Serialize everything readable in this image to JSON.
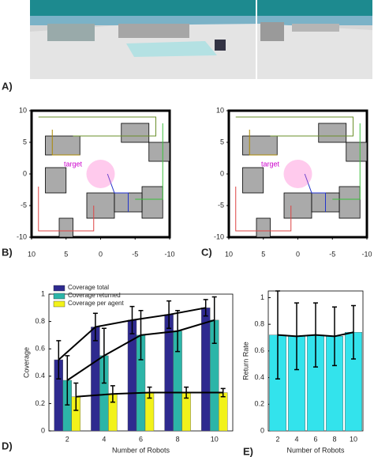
{
  "panels": {
    "labels": [
      "A)",
      "B)",
      "C)",
      "D)",
      "E)"
    ]
  },
  "chart_data": [
    {
      "type": "map",
      "xlim": [
        10,
        -10
      ],
      "ylim": [
        -10,
        10
      ],
      "xticks": [
        10,
        5,
        0,
        -5,
        -10
      ],
      "yticks": [
        10,
        5,
        0,
        -5,
        -10
      ],
      "annotation": "target"
    },
    {
      "type": "map",
      "xlim": [
        10,
        -10
      ],
      "ylim": [
        -10,
        10
      ],
      "xticks": [
        10,
        5,
        0,
        -5,
        -10
      ],
      "yticks": [
        10,
        5,
        0,
        -5,
        -10
      ],
      "annotation": "target"
    },
    {
      "type": "bar",
      "x_label": "Number of Robots",
      "y_label": "Coverage",
      "categories": [
        "2",
        "4",
        "6",
        "8",
        "10"
      ],
      "series": [
        {
          "name": "Coverage total",
          "color": "#2e2a8f",
          "values": [
            0.52,
            0.76,
            0.81,
            0.85,
            0.9
          ],
          "errors": [
            0.14,
            0.1,
            0.1,
            0.1,
            0.06
          ]
        },
        {
          "name": "Coverage returned",
          "color": "#2cb5a8",
          "values": [
            0.37,
            0.55,
            0.7,
            0.73,
            0.81
          ],
          "errors": [
            0.18,
            0.2,
            0.18,
            0.15,
            0.17
          ]
        },
        {
          "name": "Coverage per agent",
          "color": "#f2f21a",
          "values": [
            0.25,
            0.27,
            0.28,
            0.28,
            0.28
          ],
          "errors": [
            0.1,
            0.06,
            0.04,
            0.04,
            0.03
          ]
        }
      ],
      "ylim": [
        0,
        1
      ],
      "yticks": [
        0,
        0.2,
        0.4,
        0.6,
        0.8,
        1
      ],
      "legend": "upper left"
    },
    {
      "type": "bar",
      "x_label": "Number of Robots",
      "y_label": "Return Rate",
      "categories": [
        "2",
        "4",
        "6",
        "8",
        "10"
      ],
      "series": [
        {
          "name": "Return Rate",
          "color": "#33e3ec",
          "values": [
            0.72,
            0.71,
            0.72,
            0.71,
            0.74
          ],
          "errors": [
            0.33,
            0.25,
            0.24,
            0.22,
            0.2
          ]
        }
      ],
      "ylim": [
        0,
        1.05
      ],
      "yticks": [
        0,
        0.2,
        0.4,
        0.6,
        0.8,
        1
      ]
    }
  ]
}
